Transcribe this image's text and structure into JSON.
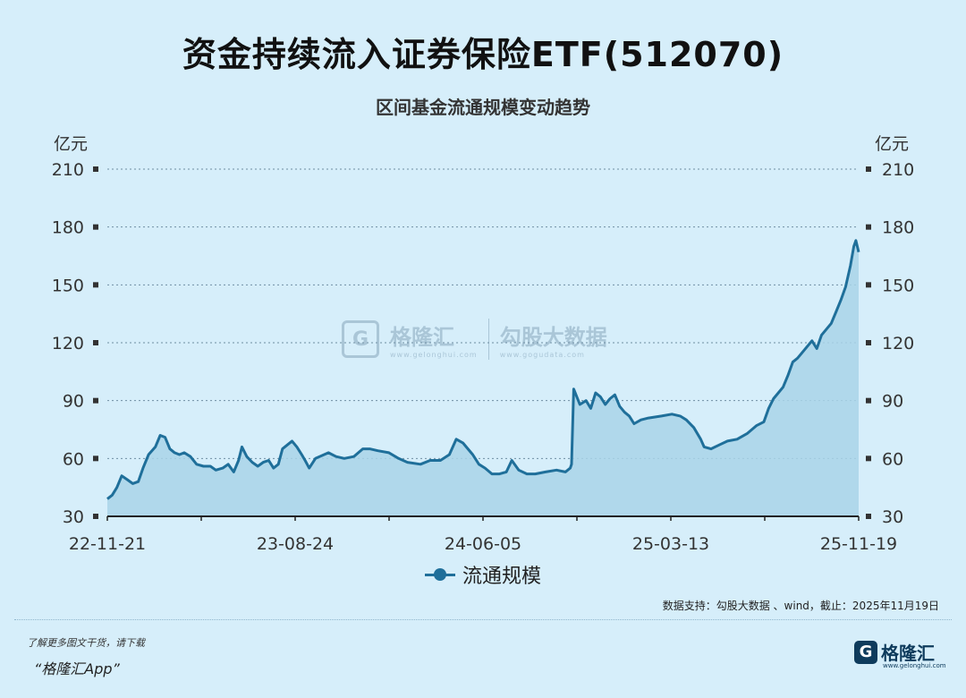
{
  "title": "资金持续流入证券保险ETF(512070)",
  "subtitle": "区间基金流通规模变动趋势",
  "unit_left": "亿元",
  "unit_right": "亿元",
  "legend_label": "流通规模",
  "source_note": "数据支持：勾股大数据 、wind，截止：2025年11月19日",
  "footer_note": "了解更多图文干货，请下载",
  "footer_app": "“格隆汇App”",
  "footer_brand": "格隆汇",
  "footer_brand_url": "www.gelonghui.com",
  "watermark": {
    "brand1": "格隆汇",
    "url1": "www.gelonghui.com",
    "brand2": "勾股大数据",
    "url2": "www.gogudata.com"
  },
  "colors": {
    "line": "#1f6f9a",
    "area": "#a9d3e8",
    "grid": "#6f8fa3",
    "background": "#d6eefa"
  },
  "chart_data": {
    "type": "area",
    "title": "资金持续流入证券保险ETF(512070)",
    "subtitle": "区间基金流通规模变动趋势",
    "ylabel": "亿元",
    "xlabel": "",
    "ylim": [
      30,
      210
    ],
    "yticks": [
      30,
      60,
      90,
      120,
      150,
      180,
      210
    ],
    "xtick_labels": [
      "22-11-21",
      "23-08-24",
      "24-06-05",
      "25-03-13",
      "25-11-19"
    ],
    "x_range": [
      "2022-11-21",
      "2025-11-19"
    ],
    "grid": true,
    "legend_position": "bottom",
    "series": [
      {
        "name": "流通规模",
        "points": [
          [
            "2022-11-21",
            39
          ],
          [
            "2022-11-28",
            41
          ],
          [
            "2022-12-05",
            45
          ],
          [
            "2022-12-12",
            51
          ],
          [
            "2022-12-20",
            49
          ],
          [
            "2022-12-28",
            47
          ],
          [
            "2023-01-05",
            48
          ],
          [
            "2023-01-12",
            55
          ],
          [
            "2023-01-20",
            62
          ],
          [
            "2023-01-30",
            66
          ],
          [
            "2023-02-06",
            72
          ],
          [
            "2023-02-13",
            71
          ],
          [
            "2023-02-20",
            65
          ],
          [
            "2023-02-27",
            63
          ],
          [
            "2023-03-06",
            62
          ],
          [
            "2023-03-13",
            63
          ],
          [
            "2023-03-22",
            61
          ],
          [
            "2023-03-31",
            57
          ],
          [
            "2023-04-10",
            56
          ],
          [
            "2023-04-20",
            56
          ],
          [
            "2023-04-28",
            54
          ],
          [
            "2023-05-08",
            55
          ],
          [
            "2023-05-16",
            57
          ],
          [
            "2023-05-24",
            53
          ],
          [
            "2023-05-31",
            59
          ],
          [
            "2023-06-05",
            66
          ],
          [
            "2023-06-12",
            61
          ],
          [
            "2023-06-20",
            58
          ],
          [
            "2023-06-28",
            56
          ],
          [
            "2023-07-06",
            58
          ],
          [
            "2023-07-14",
            59
          ],
          [
            "2023-07-21",
            55
          ],
          [
            "2023-07-28",
            57
          ],
          [
            "2023-08-03",
            65
          ],
          [
            "2023-08-10",
            67
          ],
          [
            "2023-08-17",
            69
          ],
          [
            "2023-08-24",
            66
          ],
          [
            "2023-08-31",
            62
          ],
          [
            "2023-09-05",
            59
          ],
          [
            "2023-09-11",
            55
          ],
          [
            "2023-09-20",
            60
          ],
          [
            "2023-10-09",
            63
          ],
          [
            "2023-10-20",
            61
          ],
          [
            "2023-11-01",
            60
          ],
          [
            "2023-11-15",
            61
          ],
          [
            "2023-11-28",
            65
          ],
          [
            "2023-12-08",
            65
          ],
          [
            "2023-12-20",
            64
          ],
          [
            "2024-01-05",
            63
          ],
          [
            "2024-01-19",
            60
          ],
          [
            "2024-02-01",
            58
          ],
          [
            "2024-02-20",
            57
          ],
          [
            "2024-03-05",
            59
          ],
          [
            "2024-03-20",
            59
          ],
          [
            "2024-04-02",
            62
          ],
          [
            "2024-04-12",
            70
          ],
          [
            "2024-04-22",
            68
          ],
          [
            "2024-05-06",
            62
          ],
          [
            "2024-05-15",
            57
          ],
          [
            "2024-05-24",
            55
          ],
          [
            "2024-06-03",
            52
          ],
          [
            "2024-06-14",
            52
          ],
          [
            "2024-06-24",
            53
          ],
          [
            "2024-07-02",
            59
          ],
          [
            "2024-07-12",
            54
          ],
          [
            "2024-07-24",
            52
          ],
          [
            "2024-08-05",
            52
          ],
          [
            "2024-08-20",
            53
          ],
          [
            "2024-09-05",
            54
          ],
          [
            "2024-09-18",
            53
          ],
          [
            "2024-09-25",
            55
          ],
          [
            "2024-09-27",
            57
          ],
          [
            "2024-09-30",
            96
          ],
          [
            "2024-10-09",
            88
          ],
          [
            "2024-10-18",
            90
          ],
          [
            "2024-10-25",
            86
          ],
          [
            "2024-11-01",
            94
          ],
          [
            "2024-11-08",
            92
          ],
          [
            "2024-11-15",
            88
          ],
          [
            "2024-11-22",
            91
          ],
          [
            "2024-11-29",
            93
          ],
          [
            "2024-12-06",
            87
          ],
          [
            "2024-12-13",
            84
          ],
          [
            "2024-12-20",
            82
          ],
          [
            "2024-12-27",
            78
          ],
          [
            "2025-01-06",
            80
          ],
          [
            "2025-01-17",
            81
          ],
          [
            "2025-02-05",
            82
          ],
          [
            "2025-02-20",
            83
          ],
          [
            "2025-03-04",
            82
          ],
          [
            "2025-03-13",
            80
          ],
          [
            "2025-03-24",
            76
          ],
          [
            "2025-04-03",
            70
          ],
          [
            "2025-04-08",
            66
          ],
          [
            "2025-04-18",
            65
          ],
          [
            "2025-04-30",
            67
          ],
          [
            "2025-05-12",
            69
          ],
          [
            "2025-05-26",
            70
          ],
          [
            "2025-06-10",
            73
          ],
          [
            "2025-06-23",
            77
          ],
          [
            "2025-07-04",
            79
          ],
          [
            "2025-07-11",
            86
          ],
          [
            "2025-07-18",
            91
          ],
          [
            "2025-07-25",
            94
          ],
          [
            "2025-08-01",
            97
          ],
          [
            "2025-08-08",
            103
          ],
          [
            "2025-08-15",
            110
          ],
          [
            "2025-08-22",
            112
          ],
          [
            "2025-08-29",
            115
          ],
          [
            "2025-09-05",
            118
          ],
          [
            "2025-09-12",
            121
          ],
          [
            "2025-09-19",
            117
          ],
          [
            "2025-09-26",
            124
          ],
          [
            "2025-10-10",
            130
          ],
          [
            "2025-10-17",
            136
          ],
          [
            "2025-10-24",
            142
          ],
          [
            "2025-10-31",
            149
          ],
          [
            "2025-11-07",
            160
          ],
          [
            "2025-11-12",
            170
          ],
          [
            "2025-11-15",
            173
          ],
          [
            "2025-11-19",
            167
          ]
        ]
      }
    ]
  }
}
